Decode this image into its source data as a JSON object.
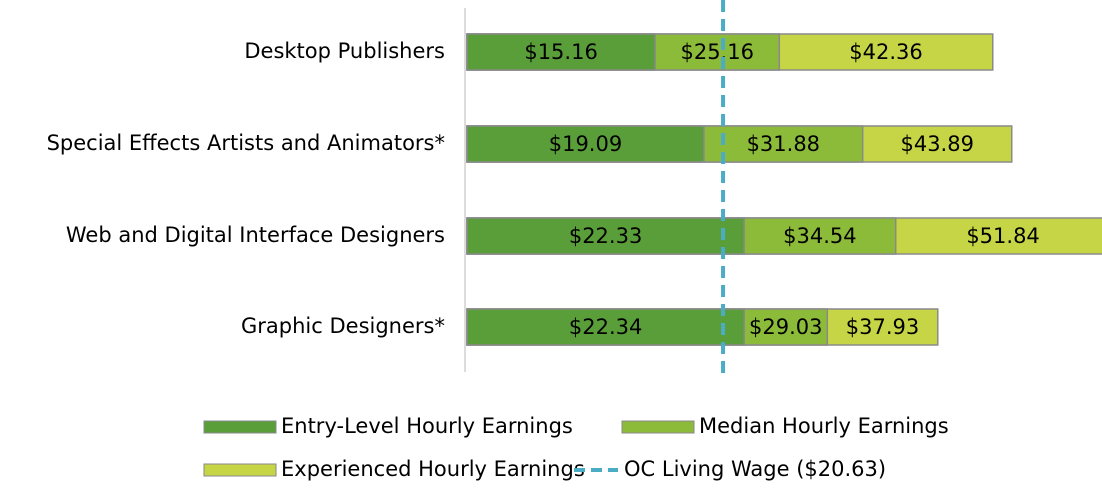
{
  "chart_data": {
    "type": "bar",
    "orientation": "horizontal",
    "categories": [
      "Desktop Publishers",
      "Special Effects Artists and Animators*",
      "Web and Digital Interface Designers",
      "Graphic Designers*"
    ],
    "series": [
      {
        "name": "Entry-Level Hourly Earnings",
        "color": "#5a9e3a",
        "values": [
          15.16,
          19.09,
          22.33,
          22.34
        ],
        "value_labels": [
          "$15.16",
          "$19.09",
          "$22.33",
          "$22.34"
        ]
      },
      {
        "name": "Median Hourly Earnings",
        "color": "#8cbb3a",
        "values": [
          25.16,
          31.88,
          34.54,
          29.03
        ],
        "value_labels": [
          "$25.16",
          "$31.88",
          "$34.54",
          "$29.03"
        ]
      },
      {
        "name": "Experienced Hourly Earnings",
        "color": "#c5d545",
        "values": [
          42.36,
          43.89,
          51.84,
          37.93
        ],
        "value_labels": [
          "$42.36",
          "$43.89",
          "$51.84",
          "$37.93"
        ]
      }
    ],
    "reference_line": {
      "name": "OC Living Wage ($20.63)",
      "value": 20.63,
      "color": "#4bacc6"
    },
    "xlim": [
      0,
      51
    ]
  }
}
